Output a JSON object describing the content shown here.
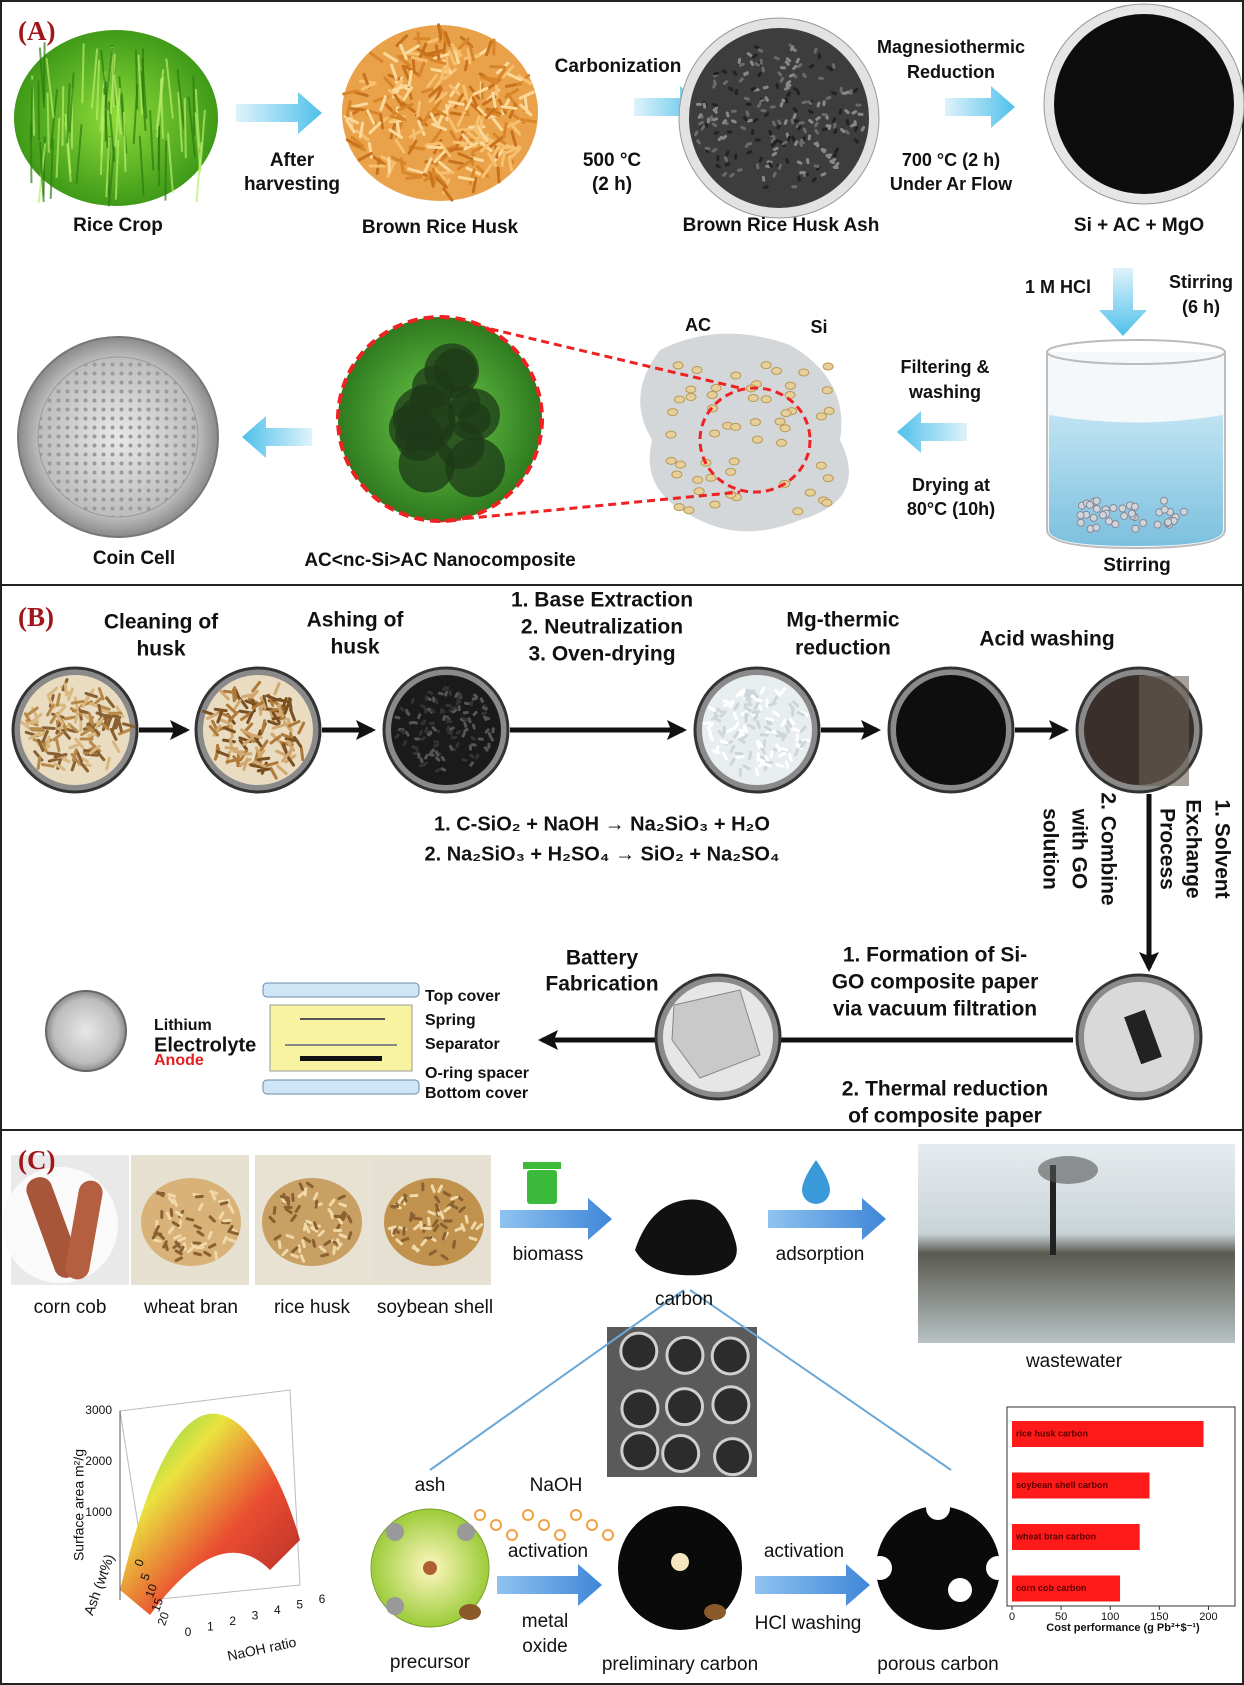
{
  "panel_a": {
    "label": "(A)",
    "rice_crop": "Rice Crop",
    "brown_rice_husk": "Brown Rice Husk",
    "brown_rice_husk_ash": "Brown Rice Husk Ash",
    "si_ac_mgo": "Si + AC + MgO",
    "after_harvesting": [
      "After",
      "harvesting"
    ],
    "carbonization": "Carbonization",
    "carbonization_conditions": [
      "500 °C",
      "(2 h)"
    ],
    "magnesiothermic_reduction": [
      "Magnesiothermic",
      "Reduction"
    ],
    "reduction_conditions": [
      "700 °C (2 h)",
      "Under Ar Flow"
    ],
    "hcl": "1 M HCl",
    "stirring_time": [
      "Stirring",
      "(6 h)"
    ],
    "stirring": "Stirring",
    "filtering": [
      "Filtering &",
      "washing"
    ],
    "drying": [
      "Drying at",
      "80°C (10h)"
    ],
    "ac": "AC",
    "si": "Si",
    "nanocomposite": "AC<nc-Si>AC Nanocomposite",
    "coin_cell": "Coin Cell"
  },
  "panel_b": {
    "label": "(B)",
    "cleaning": [
      "Cleaning of",
      "husk"
    ],
    "ashing": [
      "Ashing of",
      "husk"
    ],
    "extraction_steps": [
      "1.   Base Extraction",
      "2.   Neutralization",
      "3.   Oven-drying"
    ],
    "mg_thermic": [
      "Mg-thermic",
      "reduction"
    ],
    "acid_washing": "Acid washing",
    "equations": [
      "1.    C-SiO₂ + NaOH → Na₂SiO₃ + H₂O",
      "2.    Na₂SiO₃ + H₂SO₄ → SiO₂ + Na₂SO₄"
    ],
    "solvent_exchange": [
      "1. Solvent",
      "Exchange",
      "Process"
    ],
    "combine_go": [
      "2. Combine",
      "with GO",
      "solution"
    ],
    "formation": [
      "1. Formation of Si-",
      "GO composite paper",
      "via vacuum filtration"
    ],
    "thermal_reduction": [
      "2. Thermal reduction",
      "of composite paper"
    ],
    "battery_fabrication": [
      "Battery",
      "Fabrication"
    ],
    "battery_parts": [
      "Top cover",
      "Spring",
      "Separator",
      "O-ring spacer",
      "Bottom cover"
    ],
    "cell_layers": [
      "Lithium",
      "Electrolyte",
      "Anode"
    ]
  },
  "panel_c": {
    "label": "(C)",
    "feedstocks": [
      "corn cob",
      "wheat bran",
      "rice husk",
      "soybean shell"
    ],
    "biomass": "biomass",
    "carbon": "carbon",
    "adsorption": "adsorption",
    "wastewater": "wastewater",
    "ash": "ash",
    "naoh": "NaOH",
    "activation": [
      "activation",
      "activation"
    ],
    "metal_oxide": [
      "metal",
      "oxide"
    ],
    "hcl_washing": "HCl washing",
    "precursor": "precursor",
    "preliminary_carbon": "preliminary carbon",
    "porous_carbon": "porous carbon",
    "surface_plot": {
      "zlabel": "Surface area  m²/g",
      "zticks": [
        1000,
        2000,
        3000
      ],
      "xlabel": "NaOH ratio",
      "xticks": [
        0,
        1,
        2,
        3,
        4,
        5,
        6
      ],
      "ylabel": "Ash (wt%)",
      "yticks": [
        0,
        5,
        10,
        15,
        20
      ]
    },
    "cost_chart": {
      "type": "bar",
      "categories": [
        "rice husk carbon",
        "soybean shell carbon",
        "wheat bran carbon",
        "corn cob carbon"
      ],
      "values": [
        195,
        140,
        130,
        110
      ],
      "color": "#ff1a1a",
      "xlim": [
        0,
        225
      ],
      "xticks": [
        0,
        50,
        100,
        150,
        200
      ],
      "xlabel": "Cost performance (g Pb²⁺$⁻¹)"
    }
  }
}
